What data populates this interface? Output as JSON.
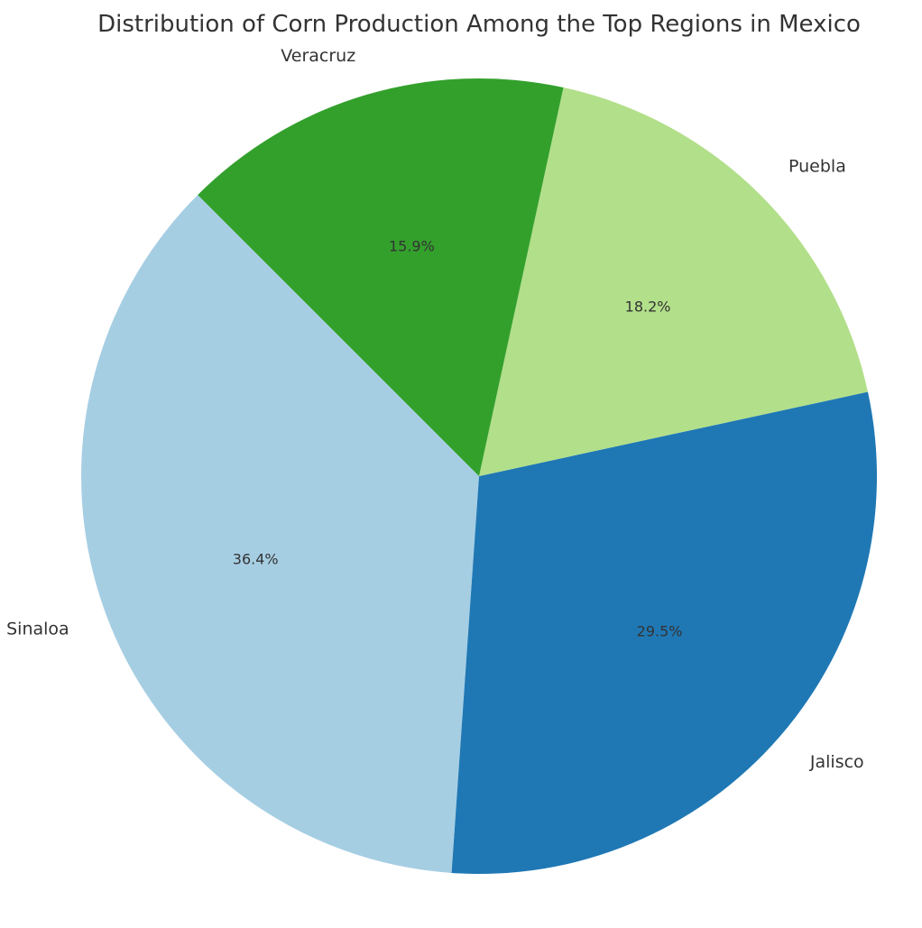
{
  "chart_data": {
    "type": "pie",
    "title": "Distribution of Corn Production Among the Top Regions in Mexico",
    "slices": [
      {
        "label": "Sinaloa",
        "percent": 36.4,
        "pct_text": "36.4%",
        "color": "#a6cee3"
      },
      {
        "label": "Jalisco",
        "percent": 29.5,
        "pct_text": "29.5%",
        "color": "#1f78b4"
      },
      {
        "label": "Puebla",
        "percent": 18.2,
        "pct_text": "18.2%",
        "color": "#b2df8a"
      },
      {
        "label": "Veracruz",
        "percent": 15.9,
        "pct_text": "15.9%",
        "color": "#33a02c"
      }
    ],
    "start_angle_deg": 135,
    "direction": "counterclockwise",
    "legend": "none"
  }
}
